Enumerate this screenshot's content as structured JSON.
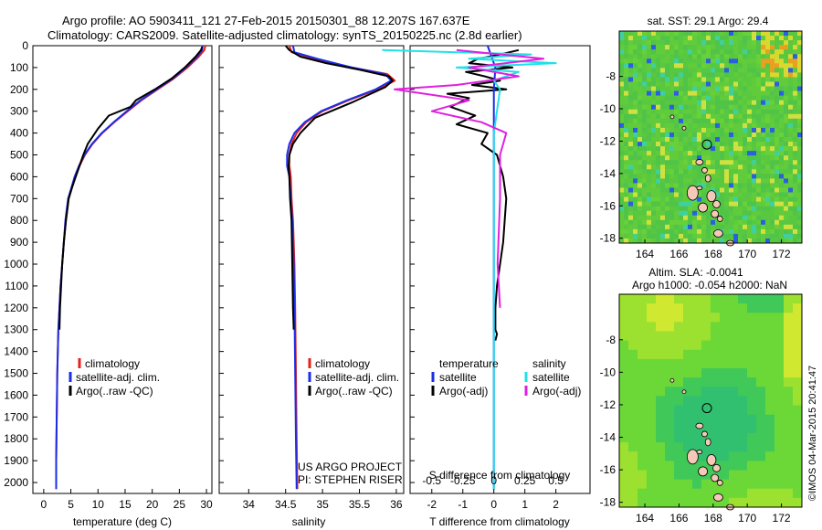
{
  "header": {
    "line1": "Argo profile: AO 5903411_121 27-Feb-2015 20150301_88 12.207S 167.637E",
    "line2": "Climatology: CARS2009. Satellite-adjusted climatology: synTS_20150225.nc (2.8d earlier)"
  },
  "colors": {
    "climatology": "#e8201c",
    "satellite": "#1a2ee8",
    "argo": "#000000",
    "salinity_satellite": "#22e0e8",
    "salinity_argo": "#e020e0"
  },
  "side_text": "©IMOS 04-Mar-2015 20:41:47",
  "chart_data": [
    {
      "type": "line",
      "id": "temperature",
      "xlabel": "temperature (deg C)",
      "ylabel": "",
      "xlim": [
        -2,
        31
      ],
      "ylim": [
        2050,
        0
      ],
      "xticks": [
        "0",
        "5",
        "10",
        "15",
        "20",
        "25",
        "30"
      ],
      "xtick_values": [
        0,
        5,
        10,
        15,
        20,
        25,
        30
      ],
      "yticks": [
        "0",
        "100",
        "200",
        "300",
        "400",
        "500",
        "600",
        "700",
        "800",
        "900",
        "1000",
        "1100",
        "1200",
        "1300",
        "1400",
        "1500",
        "1600",
        "1700",
        "1800",
        "1900",
        "2000"
      ],
      "ytick_values": [
        0,
        100,
        200,
        300,
        400,
        500,
        600,
        700,
        800,
        900,
        1000,
        1100,
        1200,
        1300,
        1400,
        1500,
        1600,
        1700,
        1800,
        1900,
        2000
      ],
      "legend": [
        "climatology",
        "satellite-adj. clim.",
        "Argo(..raw -QC)"
      ],
      "series": [
        {
          "name": "climatology",
          "color_key": "climatology",
          "x": [
            29.8,
            29.6,
            28.6,
            26.5,
            24.0,
            21.0,
            18.0,
            15.5,
            13.0,
            10.8,
            9.0,
            7.6,
            6.6,
            5.8,
            5.2,
            4.6,
            4.1,
            3.7,
            3.4,
            3.1,
            2.9,
            2.7,
            2.5,
            2.4,
            2.3,
            2.3
          ],
          "y": [
            0,
            20,
            50,
            100,
            150,
            200,
            250,
            300,
            350,
            400,
            450,
            500,
            550,
            600,
            650,
            700,
            800,
            900,
            1000,
            1100,
            1200,
            1300,
            1500,
            1700,
            1900,
            2030
          ]
        },
        {
          "name": "satellite-adj. clim.",
          "color_key": "satellite",
          "x": [
            29.3,
            29.2,
            28.3,
            26.2,
            23.8,
            20.8,
            17.8,
            15.3,
            12.9,
            10.7,
            8.9,
            7.5,
            6.5,
            5.7,
            5.1,
            4.5,
            4.0,
            3.7,
            3.4,
            3.1,
            2.9,
            2.7,
            2.5,
            2.4,
            2.3,
            2.3
          ],
          "y": [
            0,
            20,
            50,
            100,
            150,
            200,
            250,
            300,
            350,
            400,
            450,
            500,
            550,
            600,
            650,
            700,
            800,
            900,
            1000,
            1100,
            1200,
            1300,
            1500,
            1700,
            1900,
            2030
          ]
        },
        {
          "name": "Argo(..raw -QC)",
          "color_key": "argo",
          "x": [
            29.2,
            29.0,
            28.0,
            26.0,
            23.6,
            20.5,
            17.0,
            16.0,
            12.0,
            10.0,
            8.1,
            7.3,
            6.6,
            5.9,
            5.2,
            4.6,
            4.1,
            3.7,
            3.4,
            3.2,
            3.0,
            2.9
          ],
          "y": [
            5,
            20,
            50,
            100,
            150,
            200,
            250,
            280,
            320,
            380,
            450,
            500,
            550,
            600,
            650,
            700,
            800,
            900,
            1000,
            1100,
            1200,
            1300
          ]
        }
      ]
    },
    {
      "type": "line",
      "id": "salinity",
      "xlabel": "salinity",
      "xlim": [
        33.6,
        36.1
      ],
      "ylim": [
        2050,
        0
      ],
      "xticks": [
        "34",
        "34.5",
        "35",
        "35.5",
        "36"
      ],
      "xtick_values": [
        34,
        34.5,
        35,
        35.5,
        36
      ],
      "legend": [
        "climatology",
        "satellite-adj. clim.",
        "Argo(..raw -QC)"
      ],
      "annotations": [
        "US ARGO PROJECT",
        "PI: STEPHEN RISER"
      ],
      "series": [
        {
          "name": "climatology",
          "color_key": "climatology",
          "x": [
            34.55,
            34.58,
            34.9,
            35.4,
            35.88,
            35.98,
            35.75,
            35.35,
            35.0,
            34.78,
            34.65,
            34.58,
            34.55,
            34.55,
            34.57,
            34.58,
            34.6,
            34.62,
            34.63,
            34.64,
            34.65,
            34.66
          ],
          "y": [
            0,
            30,
            60,
            100,
            130,
            160,
            200,
            250,
            300,
            350,
            400,
            450,
            500,
            550,
            600,
            700,
            800,
            1000,
            1200,
            1500,
            1800,
            2030
          ]
        },
        {
          "name": "satellite-adj. clim.",
          "color_key": "satellite",
          "x": [
            34.6,
            34.62,
            34.93,
            35.4,
            35.85,
            35.93,
            35.72,
            35.33,
            34.98,
            34.76,
            34.62,
            34.55,
            34.52,
            34.52,
            34.55,
            34.57,
            34.59,
            34.61,
            34.62,
            34.63,
            34.64,
            34.65
          ],
          "y": [
            0,
            30,
            60,
            100,
            130,
            160,
            200,
            250,
            300,
            350,
            400,
            450,
            500,
            550,
            600,
            700,
            800,
            1000,
            1200,
            1500,
            1800,
            2030
          ]
        },
        {
          "name": "Argo(..raw -QC)",
          "color_key": "argo",
          "x": [
            34.5,
            34.55,
            34.7,
            35.05,
            35.5,
            35.9,
            35.95,
            35.85,
            35.4,
            34.9,
            34.7,
            34.6,
            34.55,
            34.54,
            34.55,
            34.56,
            34.58,
            34.59,
            34.6,
            34.61
          ],
          "y": [
            0,
            20,
            50,
            80,
            110,
            140,
            160,
            190,
            260,
            330,
            400,
            450,
            500,
            550,
            600,
            700,
            800,
            1000,
            1200,
            1300
          ]
        }
      ]
    },
    {
      "type": "line",
      "id": "difference",
      "xlabel": "T difference from climatology",
      "xlabel_top": "S difference from climatology",
      "xlim": [
        -2.7,
        3.1
      ],
      "ylim": [
        2050,
        0
      ],
      "xticks": [
        "-2",
        "-1",
        "0",
        "1",
        "2"
      ],
      "xtick_values": [
        -2,
        -1,
        0,
        1,
        2
      ],
      "sticks": [
        "-0.5",
        "-0.25",
        "0",
        "0.25",
        "0.5"
      ],
      "stick_values": [
        -0.5,
        -0.25,
        0,
        0.25,
        0.5
      ],
      "legend": {
        "temperature": "temperature",
        "salinity": "salinity",
        "satellite": "satellite",
        "argo_adj": "Argo(-adj)"
      },
      "series": [
        {
          "name": "Argo(-adj)",
          "quantity": "temperature",
          "color_key": "argo",
          "x": [
            0.8,
            0.2,
            -0.5,
            -0.8,
            0.6,
            -0.9,
            -0.3,
            0.2,
            -0.7,
            0.4,
            -1.5,
            -0.8,
            -1.4,
            -0.6,
            -1.2,
            -0.2,
            -0.4,
            0.1,
            0.2,
            0.3,
            0.4,
            0.35,
            0.3,
            0.2,
            0.1,
            0.05,
            0.05,
            0.05,
            0.1,
            0.05
          ],
          "y": [
            20,
            40,
            60,
            80,
            100,
            120,
            140,
            160,
            180,
            200,
            220,
            240,
            280,
            320,
            360,
            400,
            450,
            500,
            550,
            600,
            700,
            800,
            900,
            1000,
            1100,
            1200,
            1250,
            1300,
            1320,
            1350
          ]
        },
        {
          "name": "satellite",
          "quantity": "temperature",
          "color_key": "satellite",
          "x": [
            -0.2,
            0.05,
            0,
            0,
            0,
            0,
            0,
            0,
            0,
            0
          ],
          "y": [
            0,
            100,
            200,
            400,
            600,
            800,
            1000,
            1400,
            1800,
            2030
          ]
        },
        {
          "name": "satellite",
          "quantity": "salinity",
          "color_key": "salinity_satellite",
          "x": [
            -0.9,
            0.3,
            -0.2,
            0.5,
            -0.3,
            0.2,
            0,
            0.05,
            0,
            0,
            0,
            0
          ],
          "y": [
            20,
            40,
            60,
            80,
            100,
            120,
            160,
            200,
            400,
            800,
            1400,
            2030
          ]
        },
        {
          "name": "Argo(-adj)",
          "quantity": "salinity",
          "color_key": "salinity_argo",
          "x": [
            -0.3,
            0.4,
            -0.2,
            0.2,
            -0.3,
            -0.8,
            -0.2,
            -0.5,
            -0.1,
            0.1,
            0.05,
            0.05,
            0.03,
            0.05
          ],
          "y": [
            20,
            60,
            100,
            140,
            180,
            200,
            250,
            300,
            350,
            400,
            500,
            700,
            1000,
            1200
          ]
        }
      ]
    },
    {
      "type": "heatmap",
      "id": "sst_map",
      "title": "sat. SST: 29.1  Argo: 29.4",
      "xlim": [
        162.5,
        173.2
      ],
      "ylim": [
        -18.3,
        -5.2
      ],
      "xticks": [
        "164",
        "166",
        "168",
        "170",
        "172"
      ],
      "xtick_values": [
        164,
        166,
        168,
        170,
        172
      ],
      "yticks": [
        "-8",
        "-10",
        "-12",
        "-14",
        "-16",
        "-18"
      ],
      "ytick_values": [
        -8,
        -10,
        -12,
        -14,
        -16,
        -18
      ],
      "marker": {
        "lon": 167.637,
        "lat": -12.207
      }
    },
    {
      "type": "heatmap",
      "id": "sla_map",
      "title": "Altim. SLA: -0.0041",
      "subtitle": "Argo h1000: -0.054  h2000: NaN",
      "xlim": [
        162.5,
        173.2
      ],
      "ylim": [
        -18.3,
        -5.2
      ],
      "xticks": [
        "164",
        "166",
        "168",
        "170",
        "172"
      ],
      "xtick_values": [
        164,
        166,
        168,
        170,
        172
      ],
      "yticks": [
        "-8",
        "-10",
        "-12",
        "-14",
        "-16",
        "-18"
      ],
      "ytick_values": [
        -8,
        -10,
        -12,
        -14,
        -16,
        -18
      ],
      "marker": {
        "lon": 167.637,
        "lat": -12.207
      }
    }
  ]
}
